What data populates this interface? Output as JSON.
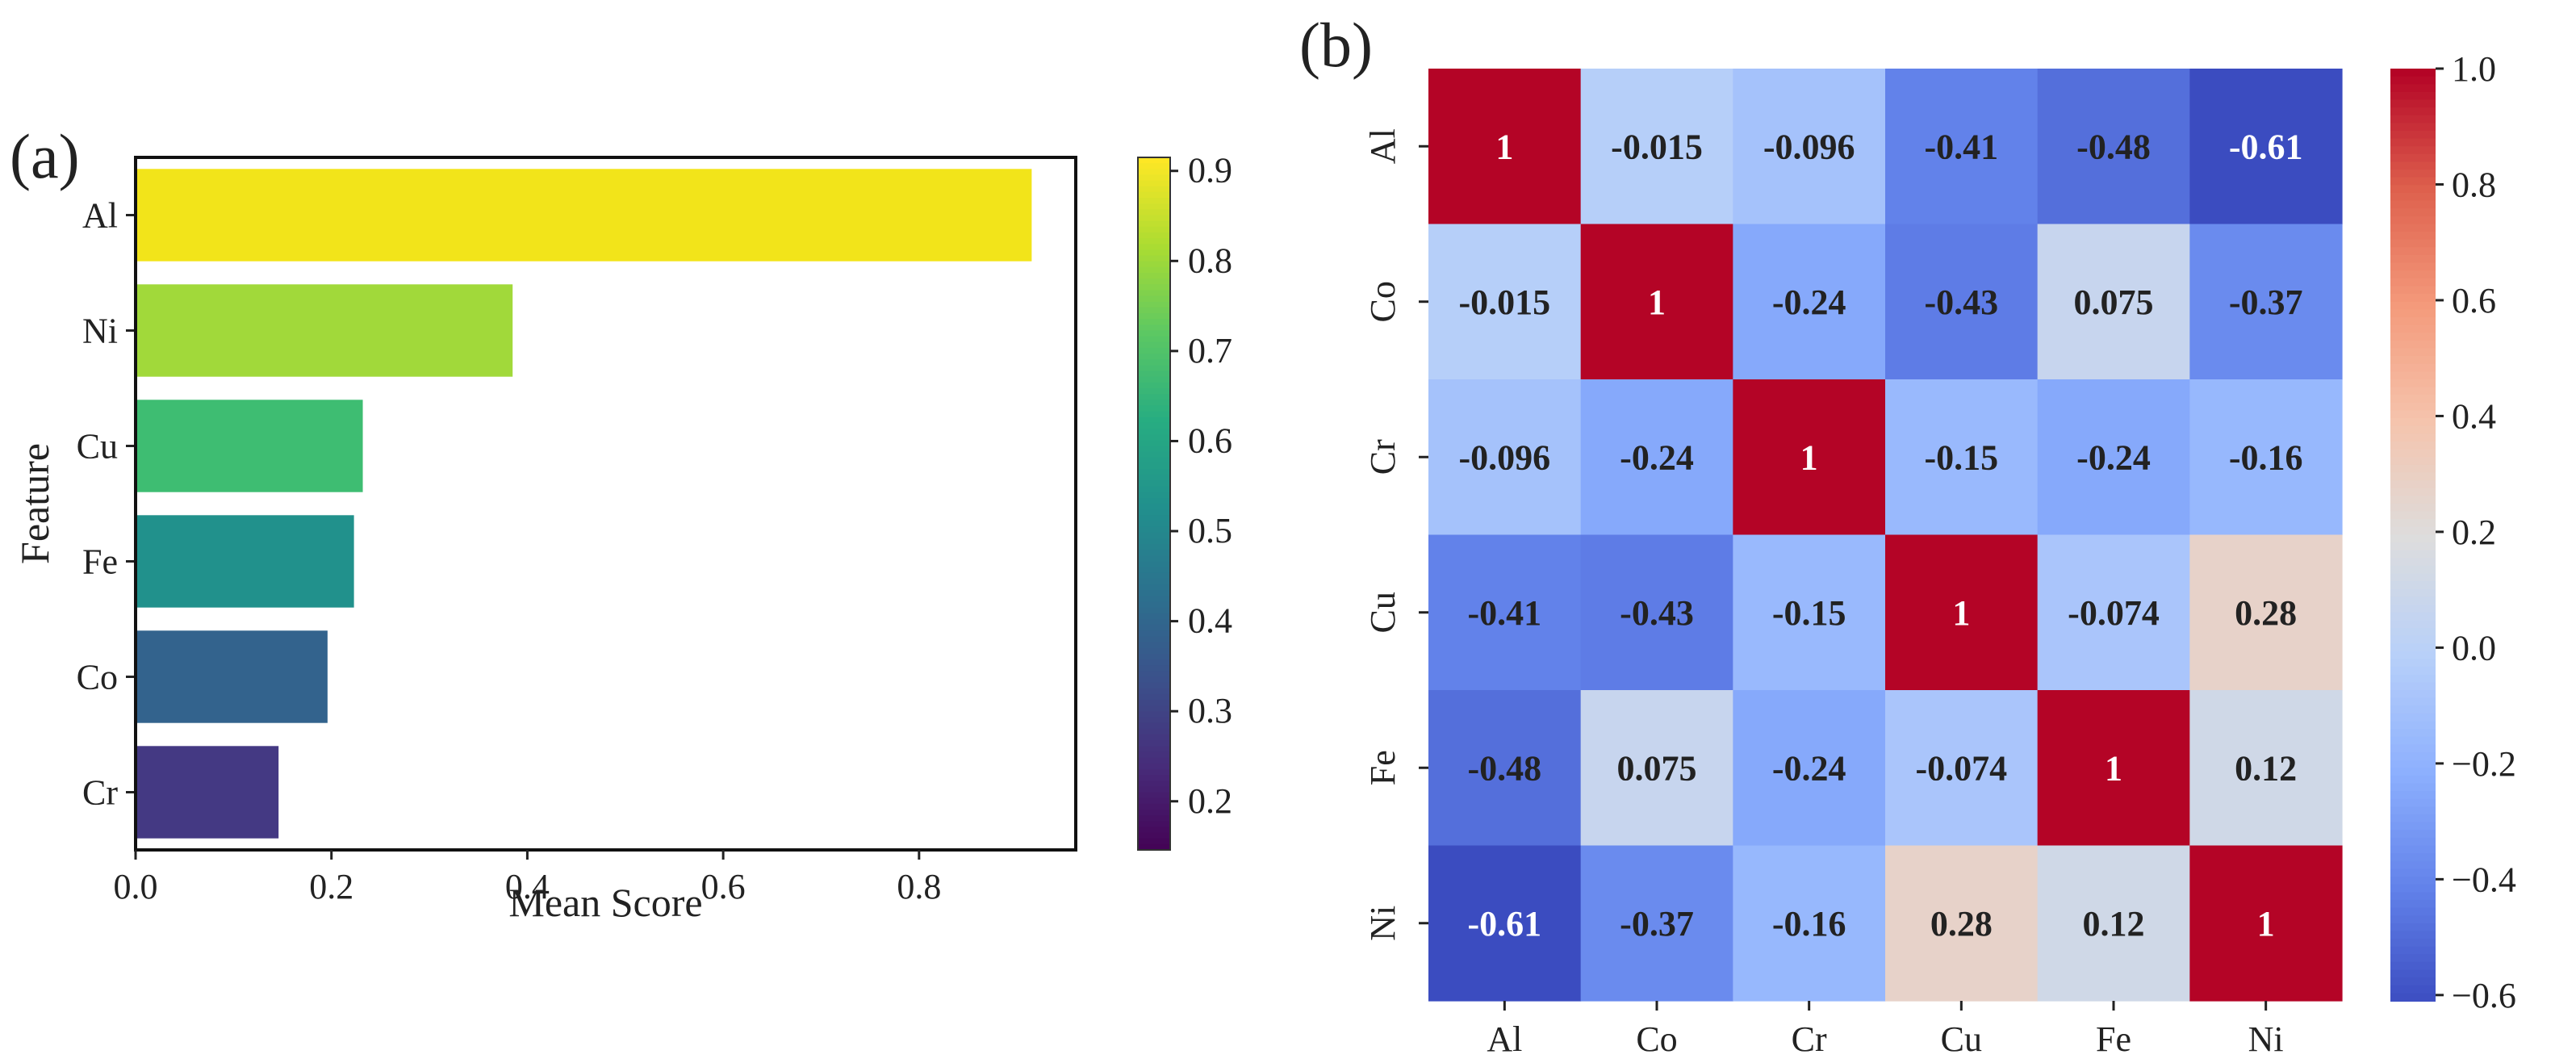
{
  "panels": {
    "a_label": "(a)",
    "b_label": "(b)"
  },
  "chart_data": [
    {
      "type": "bar",
      "orientation": "horizontal",
      "categories": [
        "Al",
        "Ni",
        "Cu",
        "Fe",
        "Co",
        "Cr"
      ],
      "values": [
        0.915,
        0.385,
        0.232,
        0.223,
        0.196,
        0.146
      ],
      "xlabel": "Mean Score",
      "ylabel": "Feature",
      "xlim": [
        0.0,
        0.96
      ],
      "xticks": [
        "0.0",
        "0.2",
        "0.4",
        "0.6",
        "0.8"
      ],
      "colormap": "viridis",
      "colorbar": {
        "range": [
          0.146,
          0.915
        ],
        "ticks": [
          "0.2",
          "0.3",
          "0.4",
          "0.5",
          "0.6",
          "0.7",
          "0.8",
          "0.9"
        ]
      },
      "bar_colors": [
        "#f2e41a",
        "#a1d93a",
        "#3ebd72",
        "#21918c",
        "#33638d",
        "#443983"
      ],
      "grid": false
    },
    {
      "type": "heatmap",
      "x_categories": [
        "Al",
        "Co",
        "Cr",
        "Cu",
        "Fe",
        "Ni"
      ],
      "y_categories": [
        "Al",
        "Co",
        "Cr",
        "Cu",
        "Fe",
        "Ni"
      ],
      "labels": [
        [
          "1",
          "-0.015",
          "-0.096",
          "-0.41",
          "-0.48",
          "-0.61"
        ],
        [
          "-0.015",
          "1",
          "-0.24",
          "-0.43",
          "0.075",
          "-0.37"
        ],
        [
          "-0.096",
          "-0.24",
          "1",
          "-0.15",
          "-0.24",
          "-0.16"
        ],
        [
          "-0.41",
          "-0.43",
          "-0.15",
          "1",
          "-0.074",
          "0.28"
        ],
        [
          "-0.48",
          "0.075",
          "-0.24",
          "-0.074",
          "1",
          "0.12"
        ],
        [
          "-0.61",
          "-0.37",
          "-0.16",
          "0.28",
          "0.12",
          "1"
        ]
      ],
      "colormap": "coolwarm",
      "colorbar": {
        "range": [
          -0.61,
          1.0
        ],
        "ticks": [
          "1.0",
          "0.8",
          "0.6",
          "0.4",
          "0.2",
          "0.0",
          "−0.2",
          "−0.4",
          "−0.6"
        ]
      }
    }
  ]
}
